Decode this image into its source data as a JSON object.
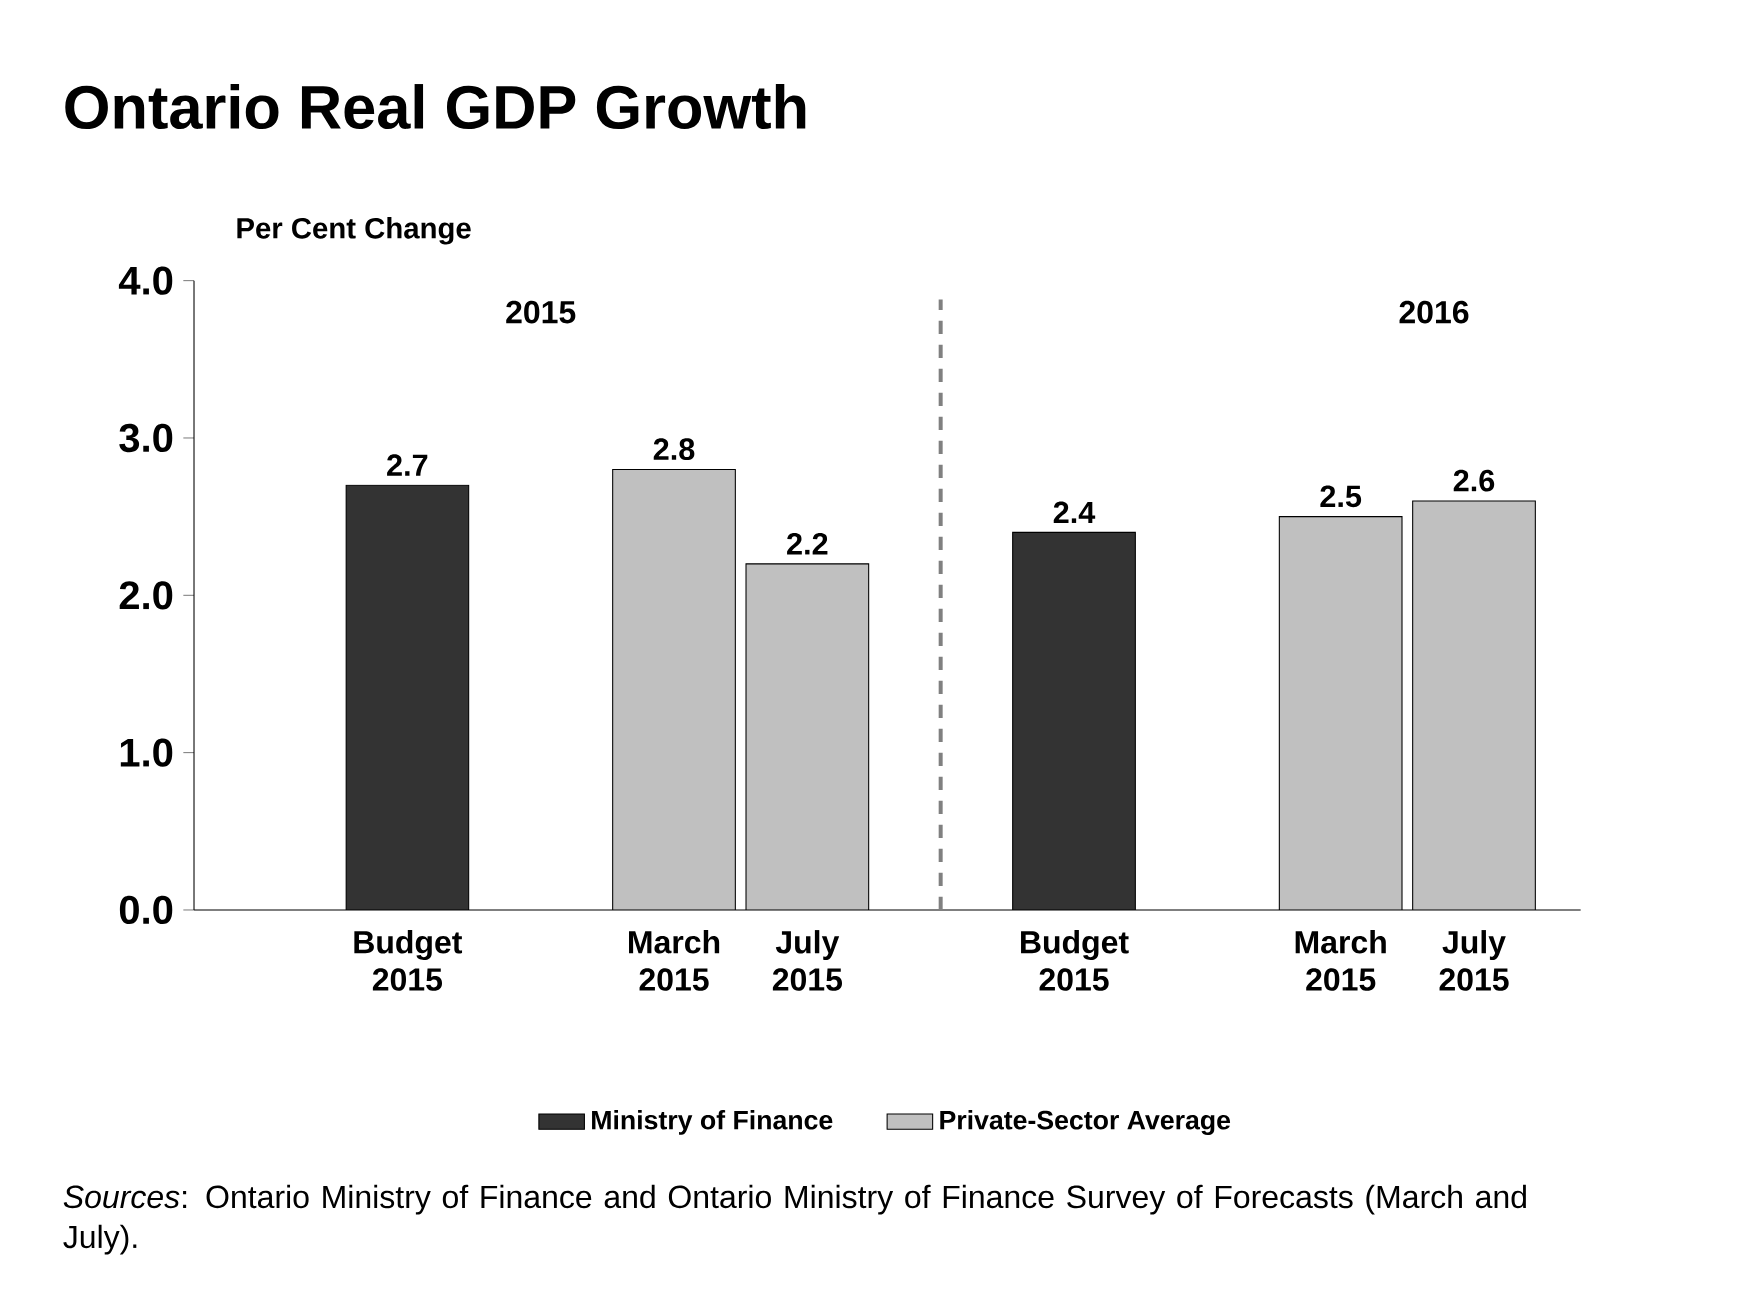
{
  "chart_data": {
    "type": "bar",
    "title": "Ontario Real GDP Growth",
    "ylabel": "Per Cent Change",
    "categories": [
      "Budget 2015",
      null,
      "March 2015",
      "July 2015",
      null,
      "Budget 2015",
      null,
      "March 2015",
      "July 2015"
    ],
    "series": [
      {
        "name": "Ministry of Finance",
        "color": "#333333",
        "values": [
          2.7,
          null,
          null,
          null,
          null,
          2.4,
          null,
          null,
          null
        ]
      },
      {
        "name": "Private-Sector Average",
        "color": "#c0c0c0",
        "values": [
          null,
          null,
          2.8,
          2.2,
          null,
          null,
          null,
          2.5,
          2.6
        ]
      }
    ],
    "ylim": [
      0,
      4
    ],
    "yticks": [
      {
        "value": 0,
        "label": "0.0"
      },
      {
        "value": 1,
        "label": "1.0"
      },
      {
        "value": 2,
        "label": "2.0"
      },
      {
        "value": 3,
        "label": "3.0"
      },
      {
        "value": 4,
        "label": "4.0"
      }
    ],
    "annotations": [
      "2015",
      "2016",
      "*Sources*: Ontario Ministry of Finance and Ontario Ministry of Finance Survey of Forecasts (March and July)."
    ],
    "data_labels": true,
    "legend": "bottom"
  }
}
